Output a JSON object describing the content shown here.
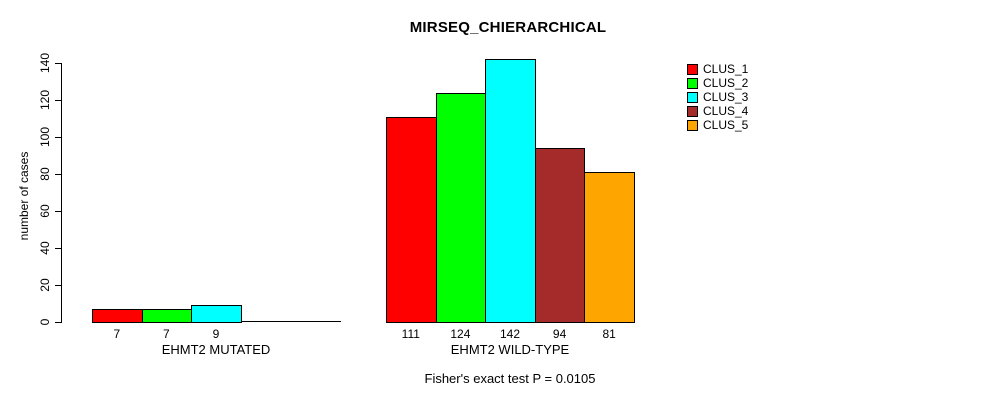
{
  "page": {
    "background": "#ffffff"
  },
  "chart_data": {
    "type": "bar",
    "title": "MIRSEQ_CHIERARCHICAL",
    "ylabel": "number of cases",
    "xlabel": "",
    "ylim": [
      0,
      140
    ],
    "yticks": [
      0,
      20,
      40,
      60,
      80,
      100,
      120,
      140
    ],
    "grid": false,
    "legend_position": "right-outside",
    "annotation": "Fisher's exact test P = 0.0105",
    "categories": [
      "EHMT2 MUTATED",
      "EHMT2 WILD-TYPE"
    ],
    "series": [
      {
        "name": "CLUS_1",
        "color": "#ff0000",
        "values": [
          7,
          111
        ]
      },
      {
        "name": "CLUS_2",
        "color": "#00ff00",
        "values": [
          7,
          124
        ]
      },
      {
        "name": "CLUS_3",
        "color": "#00ffff",
        "values": [
          9,
          142
        ]
      },
      {
        "name": "CLUS_4",
        "color": "#a52a2a",
        "values": [
          0,
          94
        ]
      },
      {
        "name": "CLUS_5",
        "color": "#ffa500",
        "values": [
          0,
          81
        ]
      }
    ],
    "bar_labels": [
      [
        "7",
        "7",
        "9",
        "",
        ""
      ],
      [
        "111",
        "124",
        "142",
        "94",
        "81"
      ]
    ],
    "axis_color": "#000000",
    "bar_border_color": "#000000"
  }
}
